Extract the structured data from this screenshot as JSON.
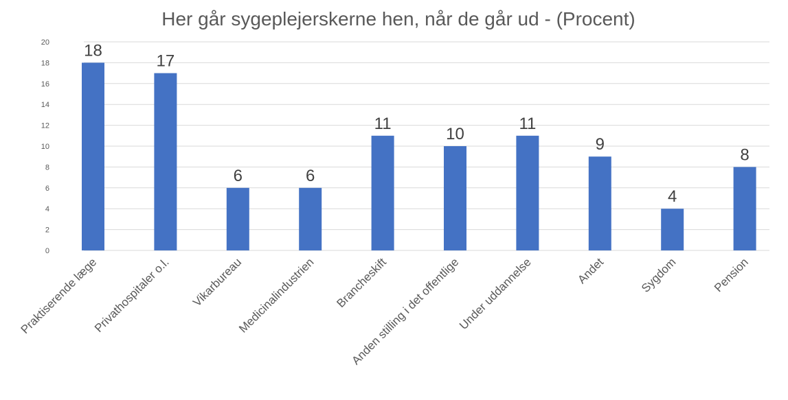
{
  "chart_data": {
    "type": "bar",
    "title": "Her går sygeplejerskerne hen, når de går ud - (Procent)",
    "xlabel": "",
    "ylabel": "",
    "categories": [
      "Praktiserende læge",
      "Privathospitaler o.l.",
      "Vikarbureau",
      "Medicinalindustrien",
      "Brancheskift",
      "Anden stilling i det offentlige",
      "Under uddannelse",
      "Andet",
      "Sygdom",
      "Pension"
    ],
    "values": [
      18,
      17,
      6,
      6,
      11,
      10,
      11,
      9,
      4,
      8
    ],
    "ylim": [
      0,
      20
    ],
    "yticks": [
      0,
      2,
      4,
      6,
      8,
      10,
      12,
      14,
      16,
      18,
      20
    ],
    "grid": true,
    "data_labels": true,
    "colors": {
      "bar": "#4472C4",
      "grid": "#D9D9D9",
      "text": "#595959"
    }
  }
}
